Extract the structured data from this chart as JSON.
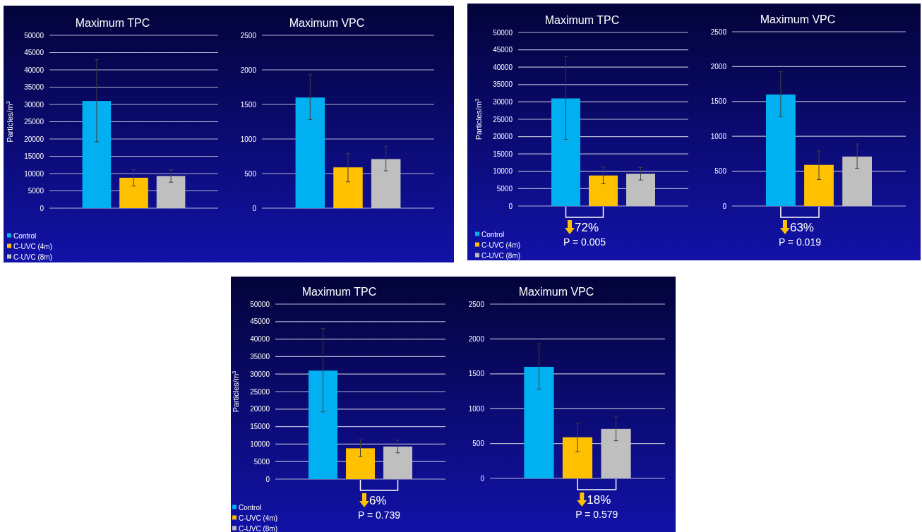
{
  "chart_data": [
    {
      "type": "bar",
      "title": "Maximum TPC",
      "ylabel": "Particles/m$^{3}$",
      "categories": [
        null
      ],
      "ylim": [
        0,
        50000
      ],
      "yticks": [
        0,
        5000,
        10000,
        15000,
        20000,
        25000,
        30000,
        35000,
        40000,
        45000,
        50000
      ],
      "grid": "y",
      "legend": "bottom left",
      "series": [
        {
          "name": "Control",
          "color": "#00b0f0",
          "values": [
            31000
          ],
          "errors": [
            [
              19200,
              43000
            ]
          ]
        },
        {
          "name": "C-UVC (4m)",
          "color": "#ffc000",
          "values": [
            8800
          ],
          "errors": [
            [
              6400,
              11200
            ]
          ]
        },
        {
          "name": "C-UVC (8m)",
          "color": "#bfbfbf",
          "values": [
            9300
          ],
          "errors": [
            [
              7500,
              11100
            ]
          ]
        }
      ]
    },
    {
      "type": "bar",
      "title": "Maximum VPC",
      "categories": [
        null
      ],
      "ylim": [
        0,
        2500
      ],
      "yticks": [
        0,
        500,
        1000,
        1500,
        2000,
        2500
      ],
      "grid": "y",
      "series": [
        {
          "color": "#00b0f0",
          "values": [
            1600
          ],
          "errors": [
            [
              1280,
              1930
            ]
          ]
        },
        {
          "color": "#ffc000",
          "values": [
            590
          ],
          "errors": [
            [
              380,
              790
            ]
          ]
        },
        {
          "color": "#bfbfbf",
          "values": [
            710
          ],
          "errors": [
            [
              540,
              890
            ]
          ]
        }
      ]
    },
    {
      "type": "bar",
      "title": "Maximum TPC",
      "ylabel": "Particles/m$^{3}$",
      "categories": [
        null
      ],
      "ylim": [
        0,
        50000
      ],
      "yticks": [
        0,
        5000,
        10000,
        15000,
        20000,
        25000,
        30000,
        35000,
        40000,
        45000,
        50000
      ],
      "grid": "y",
      "legend": "bottom left",
      "annotations": [
        "72%",
        "P = 0.005"
      ],
      "series": [
        {
          "name": "Control",
          "color": "#00b0f0",
          "values": [
            31000
          ],
          "errors": [
            [
              19200,
              43000
            ]
          ]
        },
        {
          "name": "C-UVC (4m)",
          "color": "#ffc000",
          "values": [
            8800
          ],
          "errors": [
            [
              6400,
              11200
            ]
          ]
        },
        {
          "name": "C-UVC (8m)",
          "color": "#bfbfbf",
          "values": [
            9300
          ],
          "errors": [
            [
              7500,
              11100
            ]
          ]
        }
      ]
    },
    {
      "type": "bar",
      "title": "Maximum VPC",
      "categories": [
        null
      ],
      "ylim": [
        0,
        2500
      ],
      "yticks": [
        0,
        500,
        1000,
        1500,
        2000,
        2500
      ],
      "grid": "y",
      "annotations": [
        "63%",
        "P = 0.019"
      ],
      "series": [
        {
          "color": "#00b0f0",
          "values": [
            1600
          ],
          "errors": [
            [
              1280,
              1930
            ]
          ]
        },
        {
          "color": "#ffc000",
          "values": [
            590
          ],
          "errors": [
            [
              380,
              790
            ]
          ]
        },
        {
          "color": "#bfbfbf",
          "values": [
            710
          ],
          "errors": [
            [
              540,
              890
            ]
          ]
        }
      ]
    },
    {
      "type": "bar",
      "title": "Maximum TPC",
      "ylabel": "Particles/m$^{3}$",
      "categories": [
        null
      ],
      "ylim": [
        0,
        50000
      ],
      "yticks": [
        0,
        5000,
        10000,
        15000,
        20000,
        25000,
        30000,
        35000,
        40000,
        45000,
        50000
      ],
      "grid": "y",
      "legend": "bottom left",
      "annotations": [
        "6%",
        "P = 0.739"
      ],
      "series": [
        {
          "name": "Control",
          "color": "#00b0f0",
          "values": [
            31000
          ],
          "errors": [
            [
              19200,
              43000
            ]
          ]
        },
        {
          "name": "C-UVC (4m)",
          "color": "#ffc000",
          "values": [
            8800
          ],
          "errors": [
            [
              6400,
              11200
            ]
          ]
        },
        {
          "name": "C-UVC (8m)",
          "color": "#bfbfbf",
          "values": [
            9300
          ],
          "errors": [
            [
              7500,
              11100
            ]
          ]
        }
      ]
    },
    {
      "type": "bar",
      "title": "Maximum VPC",
      "categories": [
        null
      ],
      "ylim": [
        0,
        2500
      ],
      "yticks": [
        0,
        500,
        1000,
        1500,
        2000,
        2500
      ],
      "grid": "y",
      "annotations": [
        "18%",
        "P = 0.579"
      ],
      "series": [
        {
          "color": "#00b0f0",
          "values": [
            1600
          ],
          "errors": [
            [
              1280,
              1930
            ]
          ]
        },
        {
          "color": "#ffc000",
          "values": [
            590
          ],
          "errors": [
            [
              380,
              790
            ]
          ]
        },
        {
          "color": "#bfbfbf",
          "values": [
            710
          ],
          "errors": [
            [
              540,
              890
            ]
          ]
        }
      ]
    }
  ]
}
